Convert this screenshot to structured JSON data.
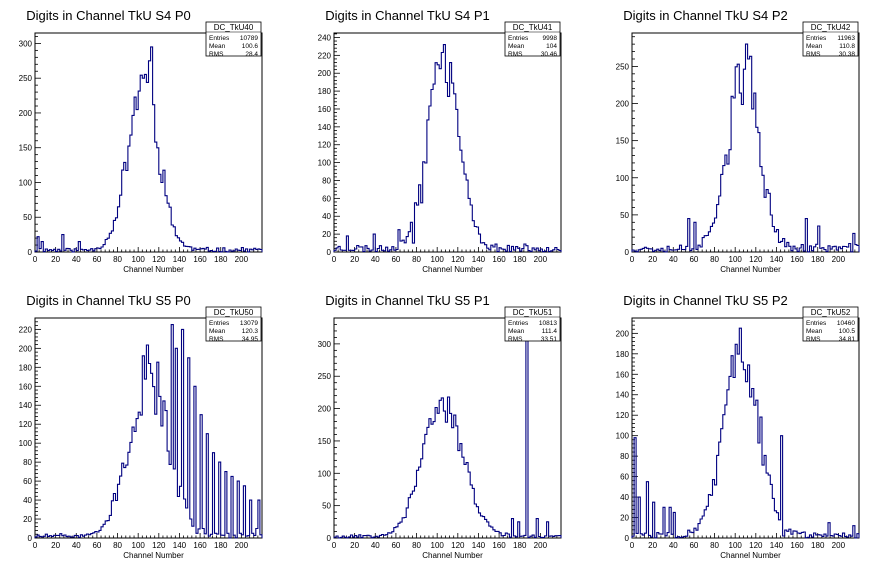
{
  "window": {
    "background": "#ffffff",
    "line_color": "#000080"
  },
  "chart_data": [
    {
      "type": "histogram",
      "title": "Digits in Channel TkU S4 P0",
      "xlabel": "Channel Number",
      "ylabel": "",
      "xlim": [
        0,
        220
      ],
      "ylim": [
        0,
        315
      ],
      "xticks": [
        0,
        20,
        40,
        60,
        80,
        100,
        120,
        140,
        160,
        180,
        200
      ],
      "yticks": [
        0,
        50,
        100,
        150,
        200,
        250,
        300
      ],
      "legend_placement": "top-right",
      "stats": {
        "name": "DC_TkU40",
        "rows": [
          {
            "label": "Entries",
            "value": "10789"
          },
          {
            "label": "Mean",
            "value": "100.6"
          },
          {
            "label": "RMS",
            "value": "28.4"
          }
        ]
      },
      "shape": {
        "mu": 105,
        "sigma": 15,
        "peak": 240,
        "baseline": 6,
        "noise": 0.18,
        "seed": 11
      },
      "spikes": [
        {
          "x": 112,
          "y": 295
        },
        {
          "x": 110,
          "y": 275
        },
        {
          "x": 104,
          "y": 250
        },
        {
          "x": 2,
          "y": 22
        },
        {
          "x": 6,
          "y": 15
        },
        {
          "x": 26,
          "y": 25
        },
        {
          "x": 42,
          "y": 15
        }
      ]
    },
    {
      "type": "histogram",
      "title": "Digits in Channel TkU S4 P1",
      "xlabel": "Channel Number",
      "ylabel": "",
      "xlim": [
        0,
        220
      ],
      "ylim": [
        0,
        245
      ],
      "xticks": [
        0,
        20,
        40,
        60,
        80,
        100,
        120,
        140,
        160,
        180,
        200
      ],
      "yticks": [
        0,
        20,
        40,
        60,
        80,
        100,
        120,
        140,
        160,
        180,
        200,
        220,
        240
      ],
      "legend_placement": "top-right",
      "stats": {
        "name": "DC_TkU41",
        "rows": [
          {
            "label": "Entries",
            "value": "9998"
          },
          {
            "label": "Mean",
            "value": "104"
          },
          {
            "label": "RMS",
            "value": "30.46"
          }
        ]
      },
      "shape": {
        "mu": 106,
        "sigma": 15,
        "peak": 210,
        "baseline": 8,
        "noise": 0.15,
        "seed": 23
      },
      "spikes": [
        {
          "x": 107,
          "y": 232
        },
        {
          "x": 78,
          "y": 55
        },
        {
          "x": 76,
          "y": 10
        },
        {
          "x": 84,
          "y": 55
        },
        {
          "x": 62,
          "y": 25
        },
        {
          "x": 38,
          "y": 20
        },
        {
          "x": 12,
          "y": 18
        }
      ]
    },
    {
      "type": "histogram",
      "title": "Digits in Channel TkU S4 P2",
      "xlabel": "Channel Number",
      "ylabel": "",
      "xlim": [
        0,
        220
      ],
      "ylim": [
        0,
        295
      ],
      "xticks": [
        0,
        20,
        40,
        60,
        80,
        100,
        120,
        140,
        160,
        180,
        200
      ],
      "yticks": [
        0,
        50,
        100,
        150,
        200,
        250
      ],
      "legend_placement": "top-right",
      "stats": {
        "name": "DC_TkU42",
        "rows": [
          {
            "label": "Entries",
            "value": "11963"
          },
          {
            "label": "Mean",
            "value": "110.8"
          },
          {
            "label": "RMS",
            "value": "30.38"
          }
        ]
      },
      "shape": {
        "mu": 108,
        "sigma": 15,
        "peak": 235,
        "baseline": 10,
        "noise": 0.2,
        "seed": 37
      },
      "spikes": [
        {
          "x": 110,
          "y": 280
        },
        {
          "x": 112,
          "y": 260
        },
        {
          "x": 54,
          "y": 45
        },
        {
          "x": 60,
          "y": 40
        },
        {
          "x": 168,
          "y": 45
        },
        {
          "x": 180,
          "y": 35
        },
        {
          "x": 214,
          "y": 25
        }
      ]
    },
    {
      "type": "histogram",
      "title": "Digits in Channel TkU S5 P0",
      "xlabel": "Channel Number",
      "ylabel": "",
      "xlim": [
        0,
        220
      ],
      "ylim": [
        0,
        232
      ],
      "xticks": [
        0,
        20,
        40,
        60,
        80,
        100,
        120,
        140,
        160,
        180,
        200
      ],
      "yticks": [
        0,
        20,
        40,
        60,
        80,
        100,
        120,
        140,
        160,
        180,
        200,
        220
      ],
      "legend_placement": "top-right",
      "stats": {
        "name": "DC_TkU50",
        "rows": [
          {
            "label": "Entries",
            "value": "13079"
          },
          {
            "label": "Mean",
            "value": "120.3"
          },
          {
            "label": "RMS",
            "value": "34.95"
          }
        ]
      },
      "shape": {
        "mu": 110,
        "sigma": 19,
        "peak": 170,
        "baseline": 4,
        "noise": 0.2,
        "seed": 51
      },
      "spikes": [
        {
          "x": 132,
          "y": 225
        },
        {
          "x": 136,
          "y": 200
        },
        {
          "x": 142,
          "y": 220
        },
        {
          "x": 148,
          "y": 190
        },
        {
          "x": 150,
          "y": 20
        },
        {
          "x": 154,
          "y": 160
        },
        {
          "x": 156,
          "y": 5
        },
        {
          "x": 160,
          "y": 130
        },
        {
          "x": 162,
          "y": 10
        },
        {
          "x": 166,
          "y": 110
        },
        {
          "x": 168,
          "y": 2
        },
        {
          "x": 172,
          "y": 90
        },
        {
          "x": 174,
          "y": 5
        },
        {
          "x": 178,
          "y": 80
        },
        {
          "x": 180,
          "y": 3
        },
        {
          "x": 184,
          "y": 70
        },
        {
          "x": 186,
          "y": 5
        },
        {
          "x": 190,
          "y": 65
        },
        {
          "x": 192,
          "y": 3
        },
        {
          "x": 196,
          "y": 60
        },
        {
          "x": 198,
          "y": 5
        },
        {
          "x": 202,
          "y": 55
        },
        {
          "x": 204,
          "y": 2
        },
        {
          "x": 208,
          "y": 40
        },
        {
          "x": 210,
          "y": 5
        },
        {
          "x": 214,
          "y": 10
        },
        {
          "x": 216,
          "y": 40
        }
      ]
    },
    {
      "type": "histogram",
      "title": "Digits in Channel TkU S5 P1",
      "xlabel": "Channel Number",
      "ylabel": "",
      "xlim": [
        0,
        220
      ],
      "ylim": [
        0,
        340
      ],
      "xticks": [
        0,
        20,
        40,
        60,
        80,
        100,
        120,
        140,
        160,
        180,
        200
      ],
      "yticks": [
        0,
        50,
        100,
        150,
        200,
        250,
        300
      ],
      "legend_placement": "top-right",
      "stats": {
        "name": "DC_TkU51",
        "rows": [
          {
            "label": "Entries",
            "value": "10813"
          },
          {
            "label": "Mean",
            "value": "111.4"
          },
          {
            "label": "RMS",
            "value": "33.51"
          }
        ]
      },
      "shape": {
        "mu": 106,
        "sigma": 20,
        "peak": 200,
        "baseline": 5,
        "noise": 0.15,
        "seed": 67
      },
      "spikes": [
        {
          "x": 186,
          "y": 330
        },
        {
          "x": 172,
          "y": 30
        },
        {
          "x": 178,
          "y": 25
        },
        {
          "x": 196,
          "y": 30
        },
        {
          "x": 206,
          "y": 25
        }
      ]
    },
    {
      "type": "histogram",
      "title": "Digits in Channel TkU S5 P2",
      "xlabel": "Channel Number",
      "ylabel": "",
      "xlim": [
        0,
        220
      ],
      "ylim": [
        0,
        215
      ],
      "xticks": [
        0,
        20,
        40,
        60,
        80,
        100,
        120,
        140,
        160,
        180,
        200
      ],
      "yticks": [
        0,
        20,
        40,
        60,
        80,
        100,
        120,
        140,
        160,
        180,
        200
      ],
      "legend_placement": "top-right",
      "stats": {
        "name": "DC_TkU52",
        "rows": [
          {
            "label": "Entries",
            "value": "10460"
          },
          {
            "label": "Mean",
            "value": "100.5"
          },
          {
            "label": "RMS",
            "value": "34.81"
          }
        ]
      },
      "shape": {
        "mu": 106,
        "sigma": 17,
        "peak": 180,
        "baseline": 6,
        "noise": 0.18,
        "seed": 83
      },
      "spikes": [
        {
          "x": 104,
          "y": 205
        },
        {
          "x": 2,
          "y": 98
        },
        {
          "x": 6,
          "y": 40
        },
        {
          "x": 14,
          "y": 55
        },
        {
          "x": 20,
          "y": 35
        },
        {
          "x": 30,
          "y": 30
        },
        {
          "x": 36,
          "y": 30
        },
        {
          "x": 40,
          "y": 25
        },
        {
          "x": 144,
          "y": 100
        },
        {
          "x": 146,
          "y": 2
        },
        {
          "x": 190,
          "y": 15
        },
        {
          "x": 214,
          "y": 12
        }
      ]
    }
  ]
}
